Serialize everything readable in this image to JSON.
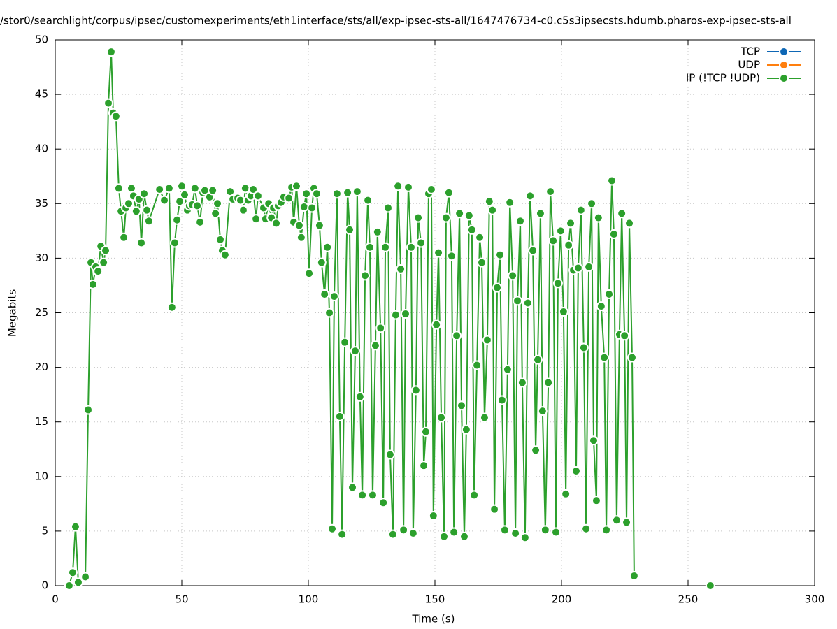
{
  "chart_data": {
    "type": "line",
    "title": "/stor0/searchlight/corpus/ipsec/customexperiments/eth1interface/sts/all/exp-ipsec-sts-all/1647476734-c0.c5s3ipsecsts.hdumb.pharos-exp-ipsec-sts-all",
    "xlabel": "Time (s)",
    "ylabel": "Megabits",
    "xlim": [
      0,
      300
    ],
    "ylim": [
      0,
      50
    ],
    "xticks": [
      0,
      50,
      100,
      150,
      200,
      250,
      300
    ],
    "yticks": [
      0,
      5,
      10,
      15,
      20,
      25,
      30,
      35,
      40,
      45,
      50
    ],
    "grid": true,
    "legend": "top-right",
    "markers": true,
    "series": [
      {
        "name": "TCP",
        "color": "#0e67b5",
        "x": [],
        "values": []
      },
      {
        "name": "UDP",
        "color": "#ff7f0e",
        "x": [],
        "values": []
      },
      {
        "name": "IP (!TCP  !UDP)",
        "color": "#2ca02c",
        "x": [
          5.5,
          6.9,
          8.0,
          9.1,
          11.9,
          13.0,
          14.1,
          14.9,
          16.0,
          16.9,
          18.0,
          19.1,
          19.9,
          21.0,
          22.1,
          22.9,
          24.0,
          25.1,
          26.0,
          27.1,
          27.9,
          29.0,
          30.1,
          30.9,
          32.0,
          33.1,
          34.0,
          35.1,
          36.2,
          37.0,
          41.2,
          43.1,
          45.0,
          46.1,
          47.2,
          48.1,
          49.2,
          50.0,
          51.1,
          52.2,
          53.0,
          54.1,
          55.2,
          56.1,
          57.2,
          58.3,
          59.1,
          61.0,
          62.2,
          63.3,
          64.1,
          65.2,
          66.0,
          67.1,
          69.1,
          70.2,
          72.1,
          73.2,
          74.3,
          75.1,
          76.2,
          77.3,
          78.2,
          79.3,
          80.1,
          82.3,
          83.1,
          84.3,
          85.4,
          86.2,
          87.3,
          88.1,
          89.2,
          90.3,
          92.3,
          93.4,
          94.2,
          95.3,
          96.4,
          97.2,
          98.3,
          99.2,
          100.3,
          101.4,
          102.2,
          103.3,
          104.4,
          105.2,
          106.4,
          107.5,
          108.3,
          109.4,
          110.2,
          111.3,
          112.4,
          113.3,
          114.4,
          115.5,
          116.3,
          117.4,
          118.5,
          119.3,
          120.4,
          121.3,
          122.4,
          123.5,
          124.3,
          125.4,
          126.5,
          127.3,
          128.5,
          129.6,
          130.4,
          131.5,
          132.3,
          133.4,
          134.5,
          135.4,
          136.5,
          137.6,
          138.4,
          139.5,
          140.6,
          141.4,
          142.5,
          143.4,
          144.5,
          145.6,
          146.4,
          147.5,
          148.6,
          149.4,
          150.6,
          151.4,
          152.5,
          153.6,
          154.4,
          155.5,
          156.6,
          157.5,
          158.6,
          159.7,
          160.5,
          161.6,
          162.4,
          163.5,
          164.6,
          165.5,
          166.6,
          167.7,
          168.5,
          169.6,
          170.7,
          171.5,
          172.7,
          173.5,
          174.6,
          175.7,
          176.5,
          177.6,
          178.7,
          179.6,
          180.7,
          181.8,
          182.6,
          183.7,
          184.5,
          185.6,
          186.7,
          187.6,
          188.7,
          189.8,
          190.6,
          191.7,
          192.5,
          193.6,
          194.8,
          195.6,
          196.7,
          197.8,
          198.6,
          199.7,
          200.8,
          201.7,
          202.8,
          203.6,
          204.7,
          205.8,
          206.6,
          207.7,
          208.8,
          209.7,
          210.8,
          211.9,
          212.7,
          213.8,
          214.6,
          215.7,
          216.9,
          217.7,
          218.8,
          219.9,
          220.7,
          221.8,
          222.9,
          223.8,
          224.9,
          225.7,
          226.8,
          227.9,
          228.7,
          null,
          258.8
        ],
        "values": [
          0,
          1.2,
          5.4,
          0.3,
          0.8,
          16.1,
          29.6,
          27.6,
          29.2,
          28.8,
          31.1,
          29.6,
          30.7,
          44.2,
          48.9,
          43.3,
          43.0,
          36.4,
          34.3,
          31.9,
          34.6,
          35.0,
          36.4,
          35.7,
          34.3,
          35.4,
          31.4,
          35.9,
          34.4,
          33.4,
          36.3,
          35.3,
          36.4,
          25.5,
          31.4,
          33.5,
          35.2,
          36.6,
          35.8,
          34.4,
          34.8,
          34.9,
          36.4,
          34.8,
          33.3,
          36.0,
          36.2,
          35.6,
          36.2,
          34.1,
          35.0,
          31.7,
          30.7,
          30.3,
          36.1,
          35.4,
          35.5,
          35.3,
          34.4,
          36.4,
          35.3,
          35.7,
          36.3,
          33.6,
          35.7,
          34.6,
          33.6,
          35.0,
          33.7,
          34.6,
          33.2,
          34.8,
          35.1,
          35.6,
          35.5,
          36.5,
          33.3,
          36.6,
          33.0,
          31.9,
          34.7,
          35.9,
          28.6,
          34.6,
          36.4,
          35.9,
          33.0,
          29.6,
          26.7,
          31.0,
          25.0,
          5.2,
          26.5,
          35.9,
          15.5,
          4.7,
          22.3,
          36.0,
          32.6,
          9.0,
          21.5,
          36.1,
          17.3,
          8.3,
          28.4,
          35.3,
          31.0,
          8.3,
          22.0,
          32.4,
          23.6,
          7.6,
          31.0,
          34.6,
          12.0,
          4.7,
          24.8,
          36.6,
          29.0,
          5.1,
          24.9,
          36.5,
          31.0,
          4.8,
          17.9,
          33.7,
          31.4,
          11.0,
          14.1,
          35.9,
          36.3,
          6.4,
          23.9,
          30.5,
          15.4,
          4.5,
          33.7,
          36.0,
          30.2,
          4.9,
          22.9,
          34.1,
          16.5,
          4.5,
          14.3,
          33.9,
          32.6,
          8.3,
          20.2,
          31.9,
          29.6,
          15.4,
          22.5,
          35.2,
          34.4,
          7.0,
          27.3,
          30.3,
          17.0,
          5.1,
          19.8,
          35.1,
          28.4,
          4.8,
          26.1,
          33.4,
          18.6,
          4.4,
          25.9,
          35.7,
          30.7,
          12.4,
          20.7,
          34.1,
          16.0,
          5.1,
          18.6,
          36.1,
          31.6,
          4.9,
          27.7,
          32.5,
          25.1,
          8.4,
          31.2,
          33.2,
          28.9,
          10.5,
          29.1,
          34.4,
          21.8,
          5.2,
          29.2,
          35.0,
          13.3,
          7.8,
          33.7,
          25.6,
          20.9,
          5.1,
          26.7,
          37.1,
          32.2,
          6.0,
          23.0,
          34.1,
          22.9,
          5.8,
          33.2,
          20.9,
          0.9,
          null,
          0
        ]
      }
    ]
  }
}
